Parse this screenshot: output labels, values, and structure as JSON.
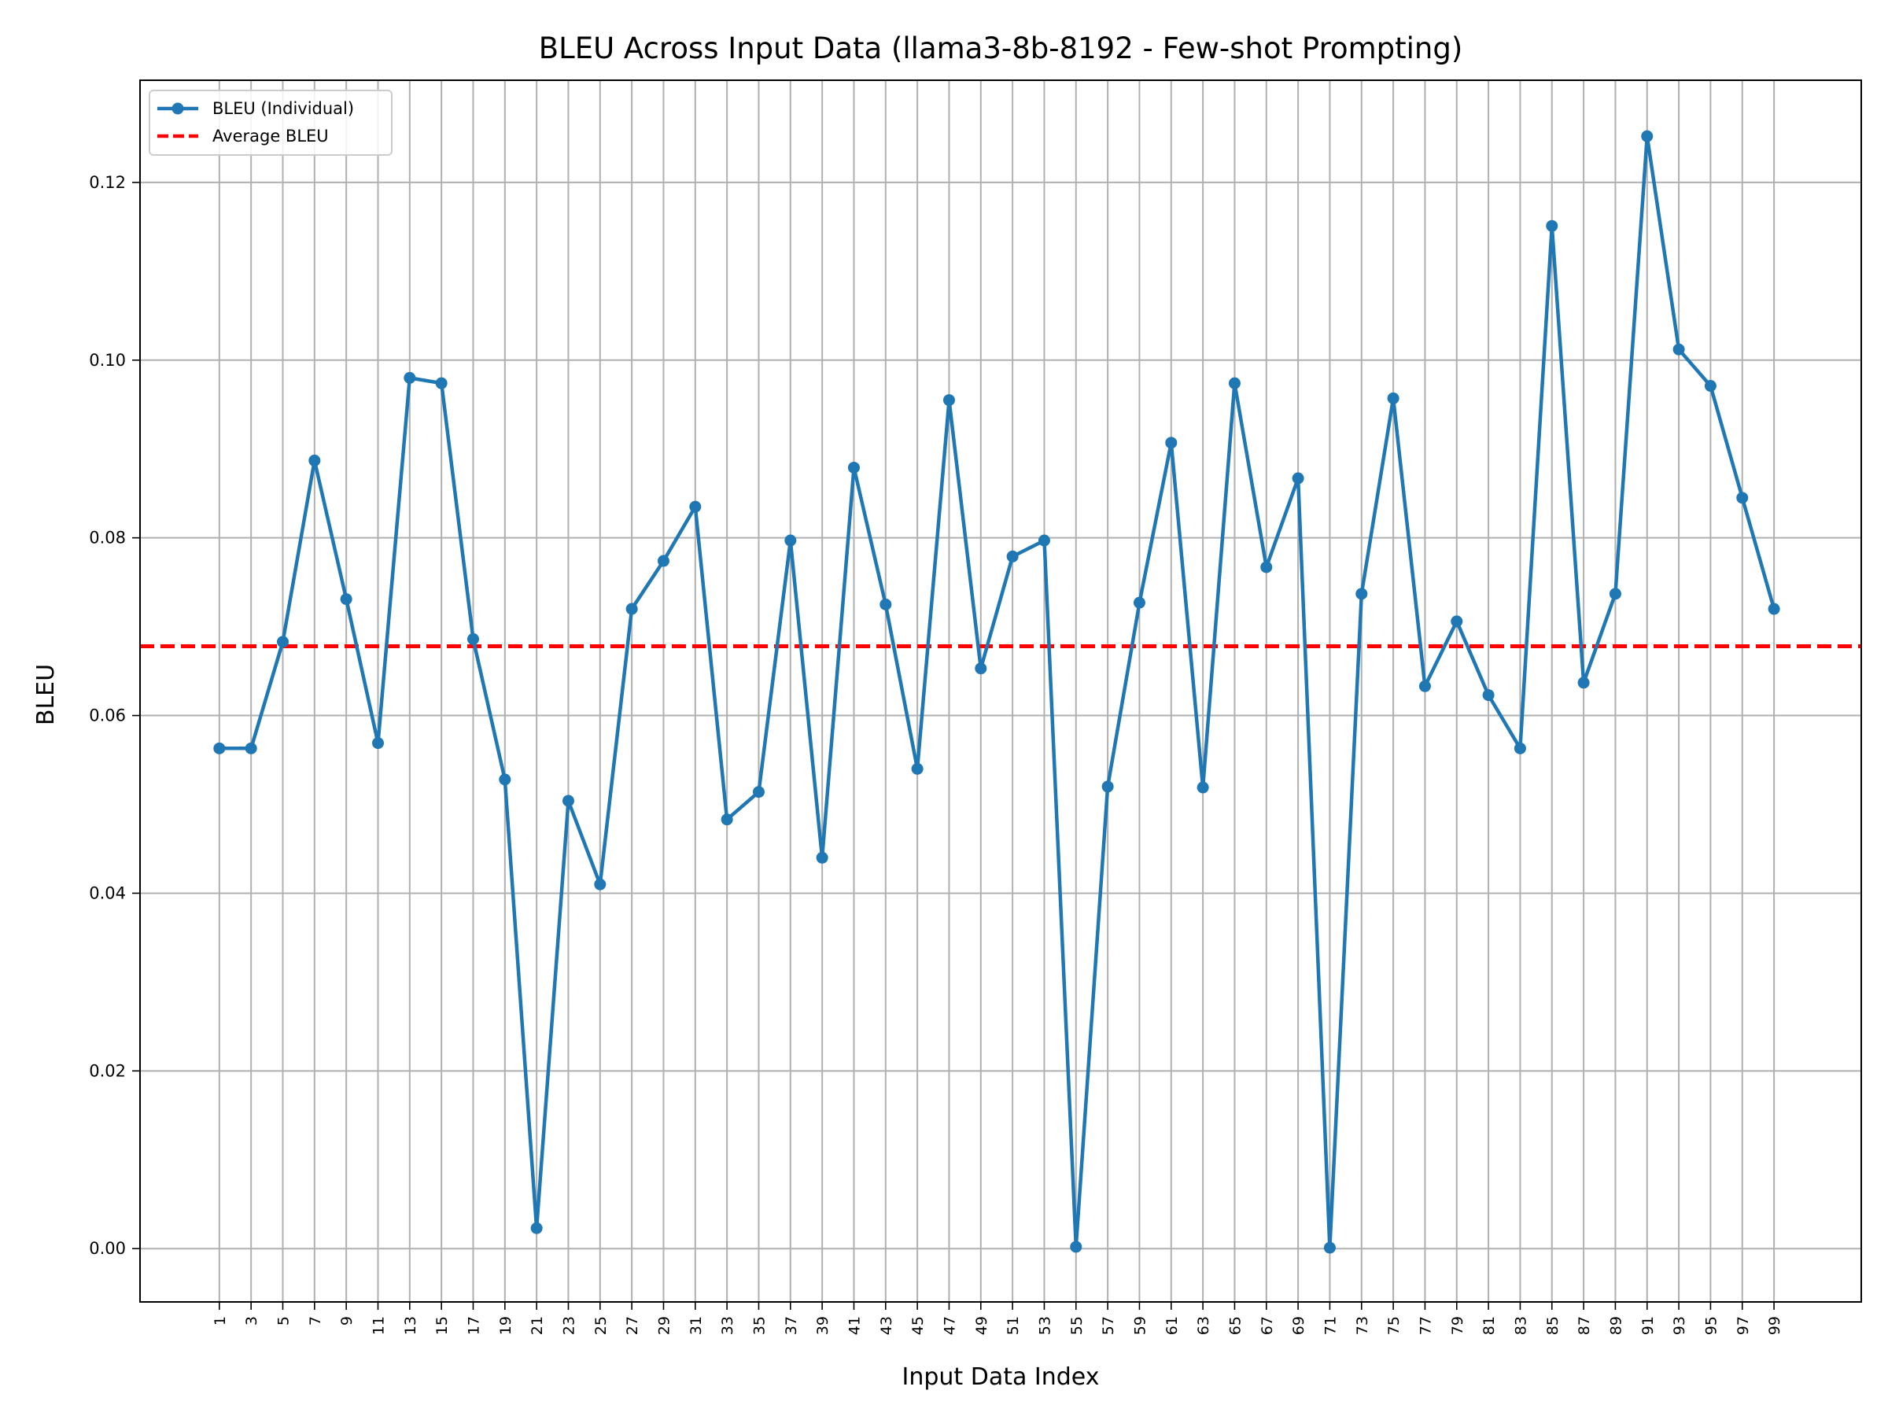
{
  "chart_data": {
    "type": "line",
    "title": "BLEU Across Input Data (llama3-8b-8192 - Few-shot Prompting)",
    "xlabel": "Input Data Index",
    "ylabel": "BLEU",
    "x": [
      1,
      3,
      5,
      7,
      9,
      11,
      13,
      15,
      17,
      19,
      21,
      23,
      25,
      27,
      29,
      31,
      33,
      35,
      37,
      39,
      41,
      43,
      45,
      47,
      49,
      51,
      53,
      55,
      57,
      59,
      61,
      63,
      65,
      67,
      69,
      71,
      73,
      75,
      77,
      79,
      81,
      83,
      85,
      87,
      89,
      91,
      93,
      95,
      97,
      99
    ],
    "x_tick_labels": [
      "1",
      "3",
      "5",
      "7",
      "9",
      "11",
      "13",
      "15",
      "17",
      "19",
      "21",
      "23",
      "25",
      "27",
      "29",
      "31",
      "33",
      "35",
      "37",
      "39",
      "41",
      "43",
      "45",
      "47",
      "49",
      "51",
      "53",
      "55",
      "57",
      "59",
      "61",
      "63",
      "65",
      "67",
      "69",
      "71",
      "73",
      "75",
      "77",
      "79",
      "81",
      "83",
      "85",
      "87",
      "89",
      "91",
      "93",
      "95",
      "97",
      "99"
    ],
    "xlim": [
      -4,
      104.5
    ],
    "ylim": [
      -0.006,
      0.1315
    ],
    "y_ticks": [
      0.0,
      0.02,
      0.04,
      0.06,
      0.08,
      0.1,
      0.12
    ],
    "y_tick_labels": [
      "0.00",
      "0.02",
      "0.04",
      "0.06",
      "0.08",
      "0.10",
      "0.12"
    ],
    "series": [
      {
        "name": "BLEU (Individual)",
        "color": "#1f77b4",
        "style": "solid-with-markers",
        "values": [
          0.0563,
          0.0563,
          0.0683,
          0.0887,
          0.0731,
          0.0569,
          0.098,
          0.0974,
          0.0686,
          0.0528,
          0.0023,
          0.0504,
          0.041,
          0.072,
          0.0774,
          0.0835,
          0.0483,
          0.0514,
          0.0797,
          0.044,
          0.0879,
          0.0725,
          0.054,
          0.0955,
          0.0653,
          0.0779,
          0.0797,
          0.0002,
          0.052,
          0.0727,
          0.0907,
          0.0519,
          0.0974,
          0.0767,
          0.0867,
          0.0001,
          0.0737,
          0.0957,
          0.0633,
          0.0706,
          0.0623,
          0.0563,
          0.1151,
          0.0637,
          0.0737,
          0.1252,
          0.1012,
          0.0971,
          0.0845,
          0.072
        ]
      }
    ],
    "reference_lines": [
      {
        "name": "Average BLEU",
        "value": 0.0678,
        "color": "#ff0000",
        "style": "dashed"
      }
    ],
    "grid": true,
    "legend_position": "top-left"
  }
}
